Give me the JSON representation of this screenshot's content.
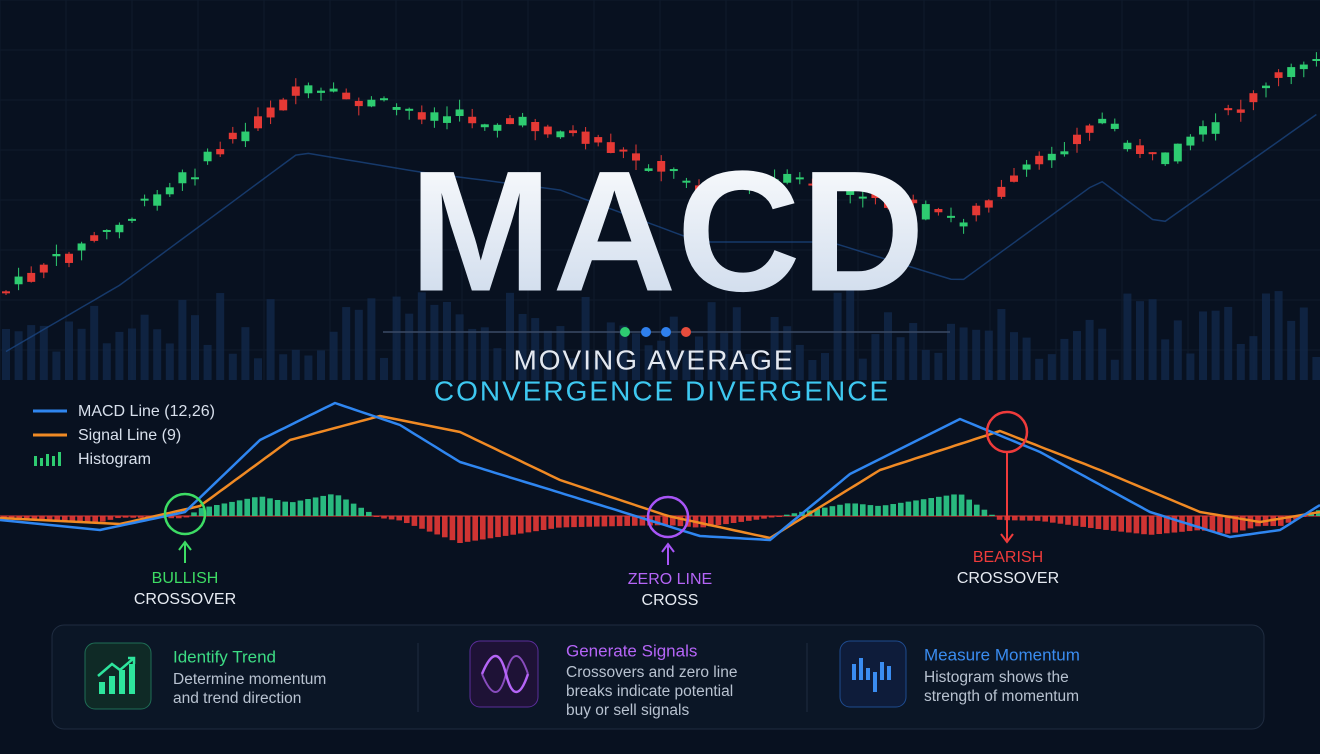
{
  "header": {
    "title": "MACD",
    "subtitle_line1": "MOVING AVERAGE",
    "subtitle_line2": "CONVERGENCE DIVERGENCE"
  },
  "legend": [
    {
      "label": "MACD Line (12,26)"
    },
    {
      "label": "Signal Line (9)"
    },
    {
      "label": "Histogram"
    }
  ],
  "annotations": [
    {
      "line1": "BULLISH",
      "line2": "CROSSOVER"
    },
    {
      "line1": "ZERO LINE",
      "line2": "CROSS"
    },
    {
      "line1": "BEARISH",
      "line2": "CROSSOVER"
    }
  ],
  "cards": [
    {
      "title": "Identify Trend",
      "lines": [
        "Determine momentum",
        "and trend direction"
      ]
    },
    {
      "title": "Generate Signals",
      "lines": [
        "Crossovers and zero line",
        "breaks indicate potential",
        "buy or sell signals"
      ]
    },
    {
      "title": "Measure Momentum",
      "lines": [
        "Histogram shows the",
        "strength of momentum"
      ]
    }
  ]
}
